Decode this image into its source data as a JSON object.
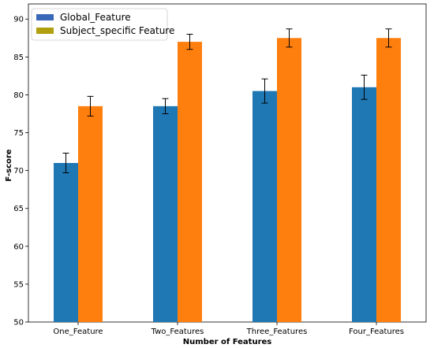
{
  "chart_data": {
    "type": "bar",
    "categories": [
      "One_Feature",
      "Two_Features",
      "Three_Features",
      "Four_Features"
    ],
    "series": [
      {
        "name": "Global_Feature",
        "values": [
          71.0,
          78.5,
          80.5,
          81.0
        ],
        "errors": [
          1.3,
          1.0,
          1.6,
          1.6
        ],
        "color": "#1f77b4",
        "legend_color": "#3a68b8"
      },
      {
        "name": "Subject_specific Feature",
        "values": [
          78.5,
          87.0,
          87.5,
          87.5
        ],
        "errors": [
          1.3,
          1.0,
          1.2,
          1.2
        ],
        "color": "#ff7f0e",
        "legend_color": "#b0a010"
      }
    ],
    "xlabel": "Number of Features",
    "ylabel": "F-score",
    "ylim": [
      50,
      92
    ],
    "yticks": [
      50,
      55,
      60,
      65,
      70,
      75,
      80,
      85,
      90
    ],
    "legend_position": "top-left",
    "grid": false
  }
}
